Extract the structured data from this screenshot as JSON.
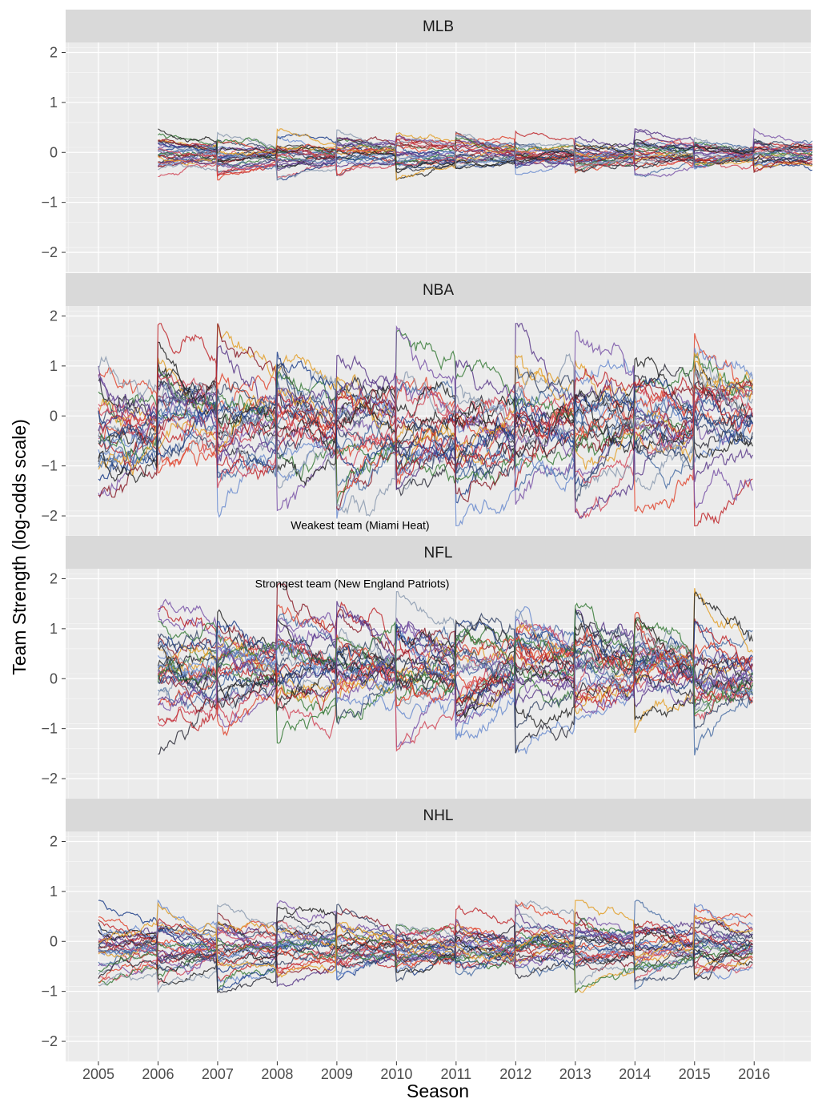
{
  "chart_data": {
    "type": "line",
    "layout": "faceted-vertical",
    "xlabel": "Season",
    "ylabel": "Team Strength (log-odds scale)",
    "x_ticks": [
      "2005",
      "2006",
      "2007",
      "2008",
      "2009",
      "2010",
      "2011",
      "2012",
      "2013",
      "2014",
      "2015",
      "2016"
    ],
    "x_range": [
      2004.45,
      2016.95
    ],
    "y_ticks": [
      -2,
      -1,
      0,
      1,
      2
    ],
    "y_tick_labels": [
      "−2",
      "−1",
      "0",
      "1",
      "2"
    ],
    "ylim": [
      -2.4,
      2.2
    ],
    "grid": true,
    "series_palette": [
      "#1f3f8a",
      "#c0282d",
      "#3b4a6b",
      "#e0452f",
      "#6b8ccf",
      "#2e2e3a",
      "#7a55a8",
      "#3a7d3a",
      "#e3a02a",
      "#8a1f2a",
      "#4a6fa5",
      "#d1495b",
      "#5b3a8a",
      "#222222",
      "#8c9bb0"
    ],
    "facets": [
      {
        "league": "MLB",
        "x_start": 2006.0,
        "x_end": 2017.0,
        "seasons": 11,
        "team_count": 30,
        "strength_range": [
          -0.55,
          0.47
        ],
        "annotation": null
      },
      {
        "league": "NBA",
        "x_start": 2005.0,
        "x_end": 2016.0,
        "seasons": 11,
        "team_count": 30,
        "strength_range": [
          -2.2,
          1.85
        ],
        "annotation": {
          "text": "Weakest team (Miami Heat)",
          "x": 2008.2,
          "y": -2.2
        }
      },
      {
        "league": "NFL",
        "x_start": 2006.0,
        "x_end": 2016.0,
        "seasons": 10,
        "team_count": 32,
        "strength_range": [
          -1.58,
          1.92
        ],
        "annotation": {
          "text": "Strongest team (New England Patriots)",
          "x": 2007.6,
          "y": 1.92
        }
      },
      {
        "league": "NHL",
        "x_start": 2005.0,
        "x_end": 2016.0,
        "seasons": 11,
        "team_count": 30,
        "strength_range": [
          -1.02,
          0.82
        ],
        "annotation": null
      }
    ]
  }
}
